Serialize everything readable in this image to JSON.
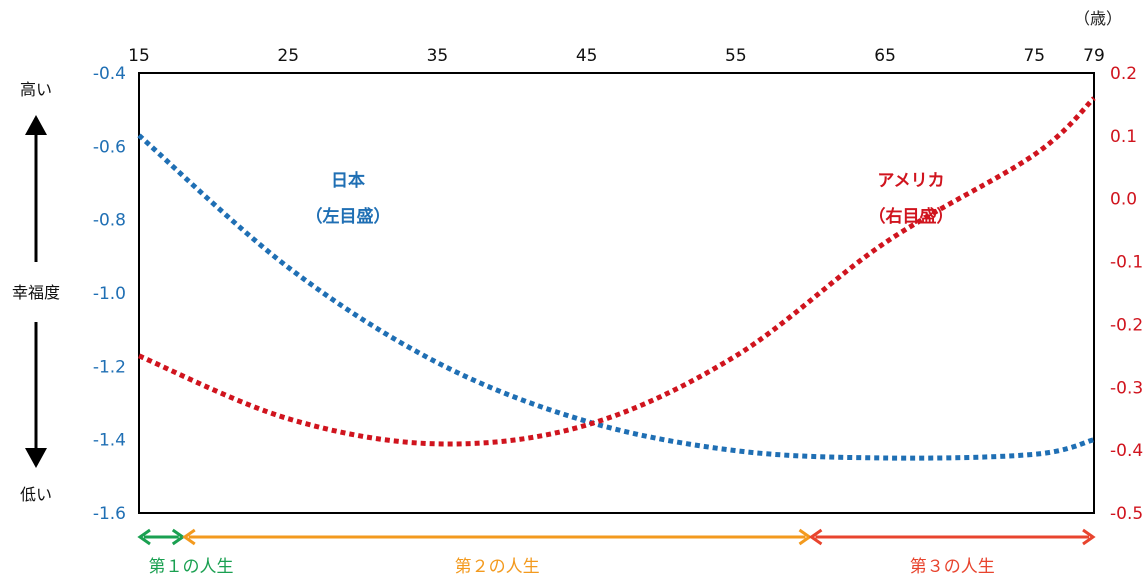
{
  "chart_data": {
    "type": "line",
    "x_unit_label": "（歳）",
    "x_ticks": [
      15,
      25,
      35,
      45,
      55,
      65,
      75,
      79
    ],
    "xlim": [
      15,
      79
    ],
    "y_left": {
      "ticks": [
        "-0.4",
        "-0.6",
        "-0.8",
        "-1.0",
        "-1.2",
        "-1.4",
        "-1.6"
      ],
      "ylim": [
        -1.6,
        -0.4
      ],
      "color": "#1f6fb4"
    },
    "y_right": {
      "ticks": [
        "0.2",
        "0.1",
        "0.0",
        "-0.1",
        "-0.2",
        "-0.3",
        "-0.4",
        "-0.5"
      ],
      "ylim": [
        -0.5,
        0.2
      ],
      "color": "#d0141e"
    },
    "series": [
      {
        "name": "日本",
        "sub": "（左目盛）",
        "axis": "left",
        "color": "#1f6fb4",
        "x": [
          15,
          25,
          35,
          45,
          55,
          65,
          75,
          79
        ],
        "y": [
          -0.57,
          -0.93,
          -1.19,
          -1.35,
          -1.43,
          -1.45,
          -1.44,
          -1.4
        ]
      },
      {
        "name": "アメリカ",
        "sub": "（右目盛）",
        "axis": "right",
        "color": "#d0141e",
        "x": [
          15,
          25,
          35,
          45,
          55,
          65,
          75,
          79
        ],
        "y": [
          -0.25,
          -0.35,
          -0.39,
          -0.36,
          -0.25,
          -0.07,
          0.07,
          0.16
        ]
      }
    ],
    "side_labels": {
      "high": "高い",
      "middle": "幸福度",
      "low": "低い"
    },
    "life_stages": [
      {
        "label": "第１の人生",
        "from": 15,
        "to": 18,
        "color": "#1aa051"
      },
      {
        "label": "第２の人生",
        "from": 18,
        "to": 60,
        "color": "#f39a1e"
      },
      {
        "label": "第３の人生",
        "from": 60,
        "to": 79,
        "color": "#e8442e"
      }
    ]
  }
}
